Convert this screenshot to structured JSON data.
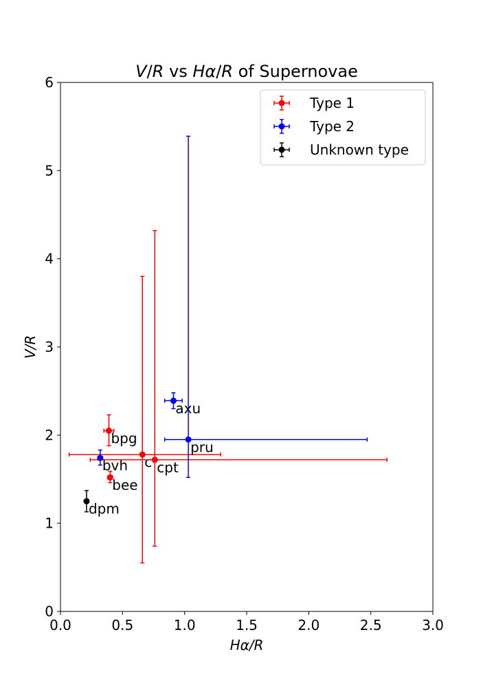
{
  "chart_data": {
    "type": "scatter",
    "title_parts": [
      {
        "text": "V",
        "italic": true
      },
      {
        "text": "/",
        "italic": false
      },
      {
        "text": "R",
        "italic": true
      },
      {
        "text": " vs ",
        "italic": false
      },
      {
        "text": "Hα",
        "italic": true
      },
      {
        "text": "/",
        "italic": false
      },
      {
        "text": "R",
        "italic": true
      },
      {
        "text": " of Supernovae",
        "italic": false
      }
    ],
    "xlabel": "Hα/R",
    "ylabel": "V/R",
    "xlim": [
      0,
      3
    ],
    "ylim": [
      0,
      6
    ],
    "xticks": [
      "0.0",
      "0.5",
      "1.0",
      "1.5",
      "2.0",
      "2.5",
      "3.0"
    ],
    "yticks": [
      "0",
      "1",
      "2",
      "3",
      "4",
      "5",
      "6"
    ],
    "grid": false,
    "legend_position": "top-right",
    "series": [
      {
        "name": "Type 1",
        "color": "#ff0000",
        "points": [
          {
            "label": "bpg",
            "x": 0.39,
            "y": 2.05,
            "xerr": [
              0.35,
              0.43
            ],
            "yerr": [
              1.88,
              2.23
            ]
          },
          {
            "label": "c",
            "x": 0.66,
            "y": 1.78,
            "xerr": [
              0.07,
              1.29
            ],
            "yerr": [
              0.55,
              3.8
            ]
          },
          {
            "label": "cpt",
            "x": 0.76,
            "y": 1.72,
            "xerr": [
              0.24,
              2.63
            ],
            "yerr": [
              0.74,
              4.32
            ]
          },
          {
            "label": "bee",
            "x": 0.4,
            "y": 1.52,
            "xerr": [
              0.38,
              0.42
            ],
            "yerr": [
              1.46,
              1.59
            ]
          }
        ]
      },
      {
        "name": "Type 2",
        "color": "#0000ff",
        "points": [
          {
            "label": "axu",
            "x": 0.91,
            "y": 2.39,
            "xerr": [
              0.84,
              0.98
            ],
            "yerr": [
              2.3,
              2.48
            ]
          },
          {
            "label": "pru",
            "x": 1.03,
            "y": 1.95,
            "xerr": [
              0.84,
              2.47
            ],
            "yerr": [
              1.52,
              5.39
            ]
          },
          {
            "label": "bvh",
            "x": 0.32,
            "y": 1.74,
            "xerr": [
              0.3,
              0.34
            ],
            "yerr": [
              1.66,
              1.83
            ]
          }
        ]
      },
      {
        "name": "Unknown type",
        "color": "#000000",
        "points": [
          {
            "label": "dpm",
            "x": 0.21,
            "y": 1.25,
            "xerr": [
              0.2,
              0.22
            ],
            "yerr": [
              1.13,
              1.37
            ]
          }
        ]
      }
    ]
  }
}
